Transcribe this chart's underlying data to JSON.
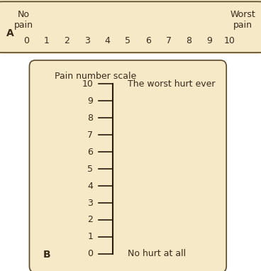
{
  "bg_color": "#f5e9c8",
  "border_color": "#5a4a2a",
  "white_bg": "#ffffff",
  "scale_numbers": [
    0,
    1,
    2,
    3,
    4,
    5,
    6,
    7,
    8,
    9,
    10
  ],
  "label_A": "A",
  "label_B": "B",
  "no_pain_text": "No\npain",
  "worst_pain_text": "Worst\npain",
  "pain_number_scale_title": "Pain number scale",
  "worst_hurt_text": "The worst hurt ever",
  "no_hurt_text": "No hurt at all",
  "text_color": "#3a2a1a",
  "tick_color": "#2a1a0a",
  "font_size_scale": 9,
  "font_size_label": 9,
  "font_size_title": 9
}
